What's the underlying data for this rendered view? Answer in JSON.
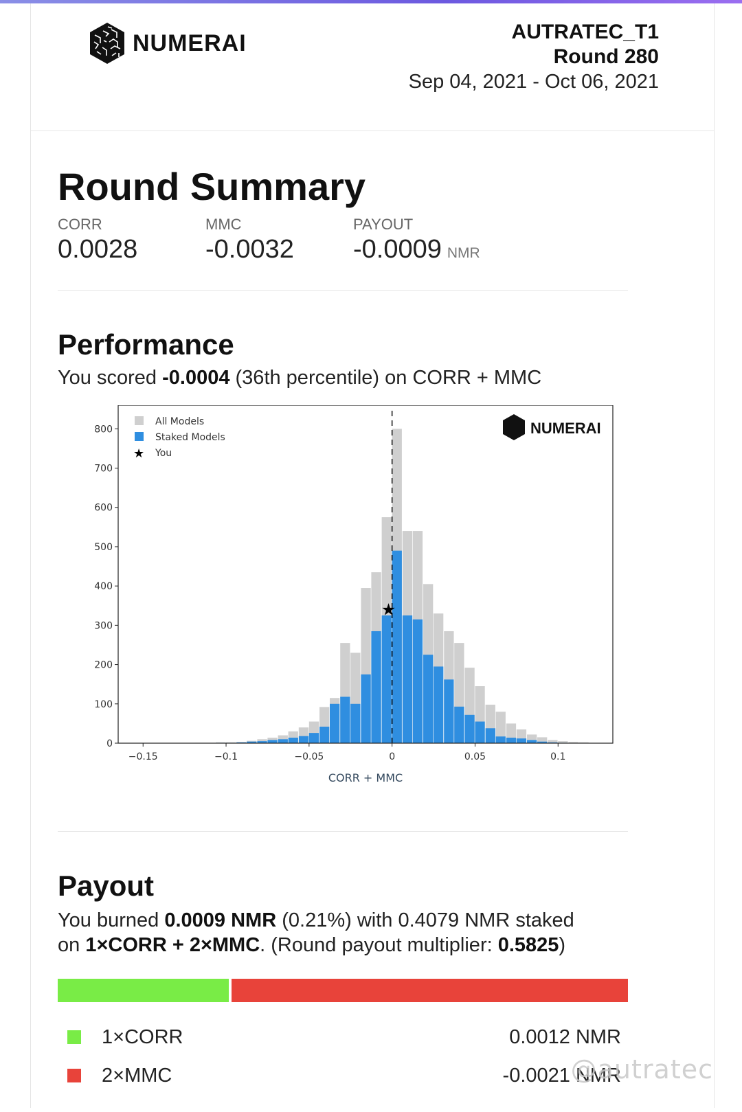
{
  "brand": {
    "name": "NUMERAI"
  },
  "header": {
    "model": "AUTRATEC_T1",
    "round": "Round 280",
    "dates": "Sep 04, 2021 - Oct 06, 2021"
  },
  "summary": {
    "title": "Round Summary",
    "stats": [
      {
        "label": "CORR",
        "value": "0.0028",
        "unit": ""
      },
      {
        "label": "MMC",
        "value": "-0.0032",
        "unit": ""
      },
      {
        "label": "PAYOUT",
        "value": "-0.0009",
        "unit": "NMR"
      }
    ]
  },
  "performance": {
    "title": "Performance",
    "text_pre": "You scored ",
    "score": "-0.0004",
    "text_post": " (36th percentile) on CORR + MMC"
  },
  "chart_data": {
    "type": "bar",
    "xlabel": "CORR + MMC",
    "ylabel": "",
    "xlim": [
      -0.165,
      0.133
    ],
    "ylim": [
      0,
      860
    ],
    "xticks": [
      -0.15,
      -0.1,
      -0.05,
      0,
      0.05,
      0.1
    ],
    "xtick_labels": [
      "−0.15",
      "−0.1",
      "−0.05",
      "0",
      "0.05",
      "0.1"
    ],
    "yticks": [
      0,
      100,
      200,
      300,
      400,
      500,
      600,
      700,
      800
    ],
    "bin_width": 0.00625,
    "bin_centers": [
      -0.1156,
      -0.1094,
      -0.1031,
      -0.0969,
      -0.0906,
      -0.0844,
      -0.0781,
      -0.0719,
      -0.0656,
      -0.0594,
      -0.0531,
      -0.0469,
      -0.0406,
      -0.0344,
      -0.0281,
      -0.0219,
      -0.0156,
      -0.0094,
      -0.0031,
      0.0031,
      0.0094,
      0.0156,
      0.0219,
      0.0281,
      0.0344,
      0.0406,
      0.0469,
      0.0531,
      0.0594,
      0.0656,
      0.0719,
      0.0781,
      0.0844,
      0.0906,
      0.0969,
      0.1031,
      0.1094,
      0.1156
    ],
    "series": [
      {
        "name": "All Models",
        "color": "#cfcfcf",
        "values": [
          1,
          1,
          2,
          2,
          3,
          6,
          10,
          14,
          20,
          30,
          40,
          55,
          92,
          115,
          255,
          230,
          395,
          435,
          575,
          800,
          540,
          540,
          405,
          330,
          285,
          255,
          192,
          145,
          98,
          80,
          50,
          35,
          22,
          15,
          8,
          5,
          3,
          2
        ]
      },
      {
        "name": "Staked Models",
        "color": "#2f8ee0",
        "values": [
          0,
          0,
          1,
          1,
          2,
          4,
          5,
          8,
          10,
          14,
          18,
          26,
          42,
          100,
          118,
          100,
          175,
          285,
          325,
          490,
          325,
          315,
          225,
          195,
          162,
          93,
          72,
          55,
          38,
          17,
          14,
          12,
          8,
          4,
          2,
          1,
          0,
          0
        ]
      }
    ],
    "you": {
      "name": "You",
      "x": -0.0004,
      "y": 340
    },
    "vline_x": 0,
    "legend": "top-left",
    "logo_text": "NUMERAI"
  },
  "payout": {
    "title": "Payout",
    "line1_pre": "You burned ",
    "burned": "0.0009 NMR",
    "line1_post": " (0.21%) with 0.4079 NMR staked",
    "line2_pre": "on ",
    "formula": "1×CORR + 2×MMC",
    "line2_mid": ". (Round payout multiplier: ",
    "multiplier": "0.5825",
    "line2_post": ")",
    "bar_corr_fraction": 0.3,
    "rows": [
      {
        "label": "1×CORR",
        "value": "0.0012 NMR",
        "color": "#79ec46"
      },
      {
        "label": "2×MMC",
        "value": "-0.0021 NMR",
        "color": "#e8433a"
      }
    ]
  },
  "watermark": "@autratec"
}
